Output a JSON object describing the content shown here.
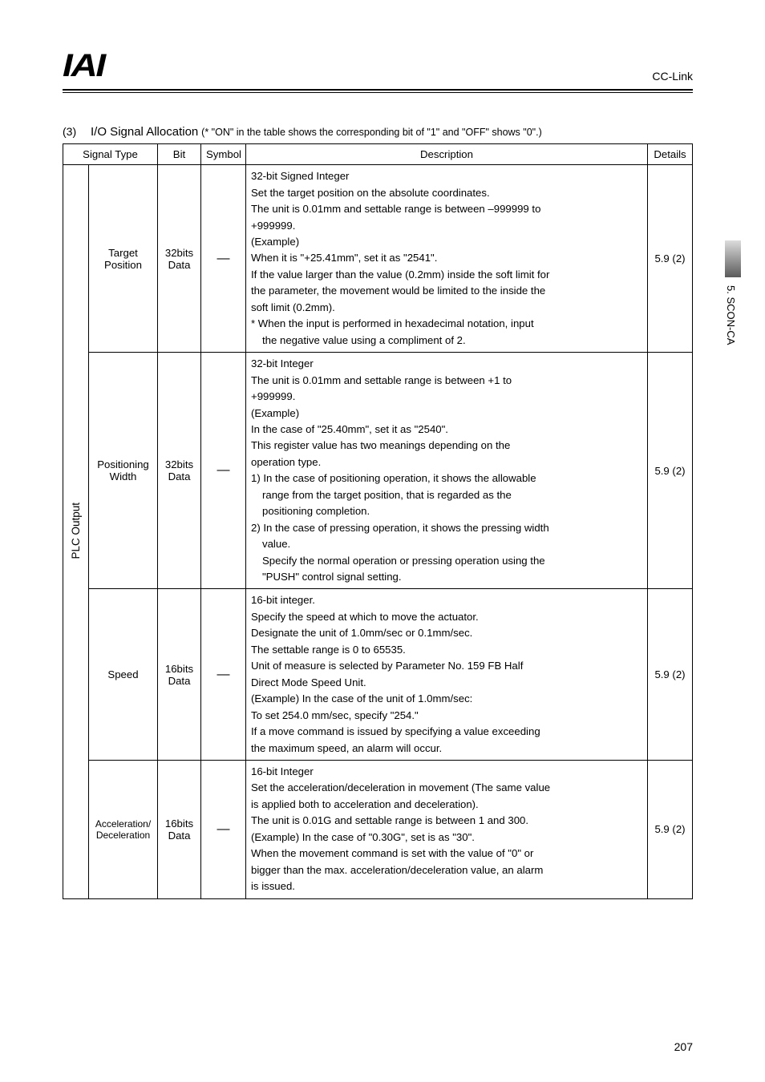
{
  "header": {
    "logo": "IAI",
    "doc_label": "CC-Link"
  },
  "side_tab": {
    "label": "5. SCON-CA"
  },
  "section": {
    "number": "(3)",
    "title": "I/O Signal Allocation",
    "note": "(* \"ON\" in the table shows the corresponding bit of \"1\" and \"OFF\" shows \"0\".)"
  },
  "table": {
    "headers": {
      "signal_type": "Signal Type",
      "bit": "Bit",
      "symbol": "Symbol",
      "description": "Description",
      "details": "Details"
    },
    "group_label": "PLC Output",
    "symbol_dash": "―",
    "rows": [
      {
        "name": [
          "Target",
          "Position"
        ],
        "bit": [
          "32bits",
          "Data"
        ],
        "details": "5.9 (2)",
        "desc": [
          "32-bit Signed Integer",
          "Set the target position on the absolute coordinates.",
          "The unit is 0.01mm and settable range is between –999999 to",
          "+999999.",
          "(Example)",
          "When it is \"+25.41mm\", set it as \"2541\".",
          "If the value larger than the value (0.2mm) inside the soft limit for",
          "the parameter, the movement would be limited to the inside the",
          "soft limit (0.2mm).",
          "*  When the input is performed in hexadecimal notation, input",
          "the negative value using a compliment of 2."
        ],
        "indent": [
          0,
          0,
          0,
          0,
          0,
          0,
          0,
          0,
          0,
          0,
          1
        ]
      },
      {
        "name": [
          "Positioning",
          "Width"
        ],
        "bit": [
          "32bits",
          "Data"
        ],
        "details": "5.9 (2)",
        "desc": [
          "32-bit Integer",
          "The unit is 0.01mm and settable range is between +1 to",
          "+999999.",
          "(Example)",
          "In the case of \"25.40mm\", set it as \"2540\".",
          "This register value has two meanings depending on the",
          "operation type.",
          "1) In the case of positioning operation, it shows the allowable",
          "range from the target position, that is regarded as the",
          "positioning completion.",
          "2) In the case of pressing operation, it shows the pressing width",
          "value.",
          "Specify the normal operation or pressing operation using the",
          "\"PUSH\" control signal setting."
        ],
        "indent": [
          0,
          0,
          0,
          0,
          0,
          0,
          0,
          0,
          1,
          1,
          0,
          1,
          1,
          1
        ]
      },
      {
        "name": [
          "Speed"
        ],
        "bit": [
          "16bits",
          "Data"
        ],
        "details": "5.9 (2)",
        "desc": [
          "16-bit integer.",
          "Specify the speed at which to move the actuator.",
          "Designate the unit of 1.0mm/sec or 0.1mm/sec.",
          "The settable range is 0 to 65535.",
          "Unit of measure is selected by Parameter No. 159 FB Half",
          "Direct Mode Speed Unit.",
          "(Example) In the case of the unit of 1.0mm/sec:",
          "To set 254.0 mm/sec, specify \"254.\"",
          "If a move command is issued by specifying a value exceeding",
          "the maximum speed, an alarm will occur."
        ],
        "indent": [
          0,
          0,
          0,
          0,
          0,
          0,
          0,
          0,
          0,
          0
        ]
      },
      {
        "name": [
          "Acceleration/",
          "Deceleration"
        ],
        "bit": [
          "16bits",
          "Data"
        ],
        "details": "5.9 (2)",
        "desc": [
          "16-bit Integer",
          "Set the acceleration/deceleration in movement (The same value",
          "is applied both to acceleration and deceleration).",
          "The unit is 0.01G and settable range is between 1 and 300.",
          "(Example) In the case of \"0.30G\", set is as \"30\".",
          "When the movement command is set with the value of \"0\" or",
          "bigger than the max. acceleration/deceleration value, an alarm",
          "is issued."
        ],
        "indent": [
          0,
          0,
          0,
          0,
          0,
          0,
          0,
          0
        ]
      }
    ]
  },
  "page_number": "207"
}
